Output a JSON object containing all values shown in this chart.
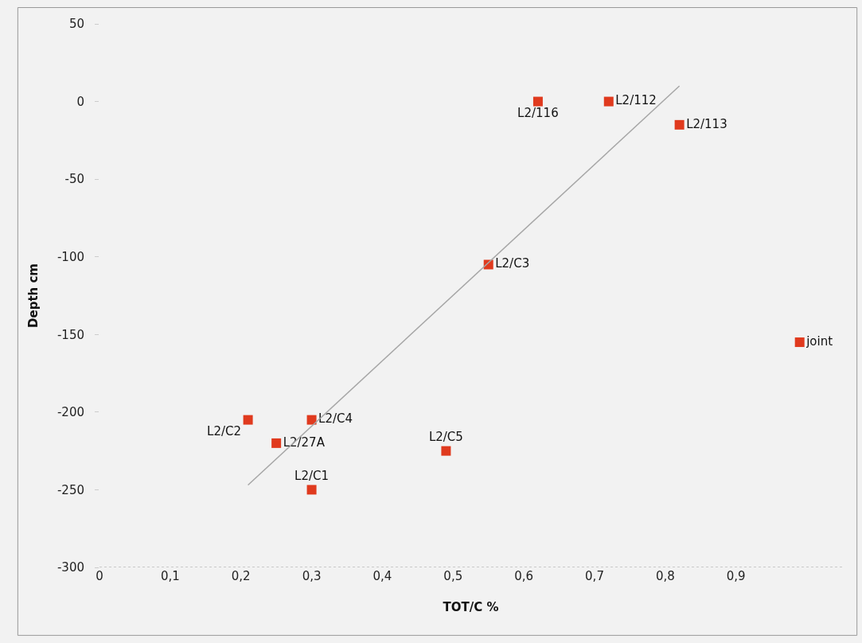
{
  "chart_data": {
    "type": "scatter",
    "xlabel": "TOT/C %",
    "ylabel": "Depth cm",
    "xlim": [
      0,
      1.05
    ],
    "ylim": [
      -300,
      50
    ],
    "xticks": [
      0,
      {
        "value": 0.1,
        "label": "0,1"
      },
      {
        "value": 0.2,
        "label": "0,2"
      },
      {
        "value": 0.3,
        "label": "0,3"
      },
      {
        "value": 0.4,
        "label": "0,4"
      },
      {
        "value": 0.5,
        "label": "0,5"
      },
      {
        "value": 0.6,
        "label": "0,6"
      },
      {
        "value": 0.7,
        "label": "0,7"
      },
      {
        "value": 0.8,
        "label": "0,8"
      },
      {
        "value": 0.9,
        "label": "0,9"
      }
    ],
    "yticks": [
      50,
      0,
      -50,
      -100,
      -150,
      -200,
      -250,
      -300
    ],
    "grid": false,
    "marker": "square",
    "series": [
      {
        "color": "#e03a1e",
        "x": [
          0.21,
          0.3,
          0.25,
          0.3,
          0.49,
          0.55,
          0.62,
          0.72,
          0.82,
          0.99
        ],
        "values": [
          -205,
          -205,
          -220,
          -250,
          -225,
          -105,
          0,
          0,
          -15,
          -155
        ],
        "value_labels": [
          "L2/C2",
          "L2/C4",
          "L2/27A",
          "L2/C1",
          "L2/C5",
          "L2/C3",
          "L2/116",
          "L2/112",
          "L2/113",
          "joint"
        ]
      },
      {
        "type": "line",
        "color": "#a6a6a6",
        "x": [
          0.21,
          0.82
        ],
        "values": [
          -247,
          10
        ],
        "marker": "none"
      }
    ]
  }
}
